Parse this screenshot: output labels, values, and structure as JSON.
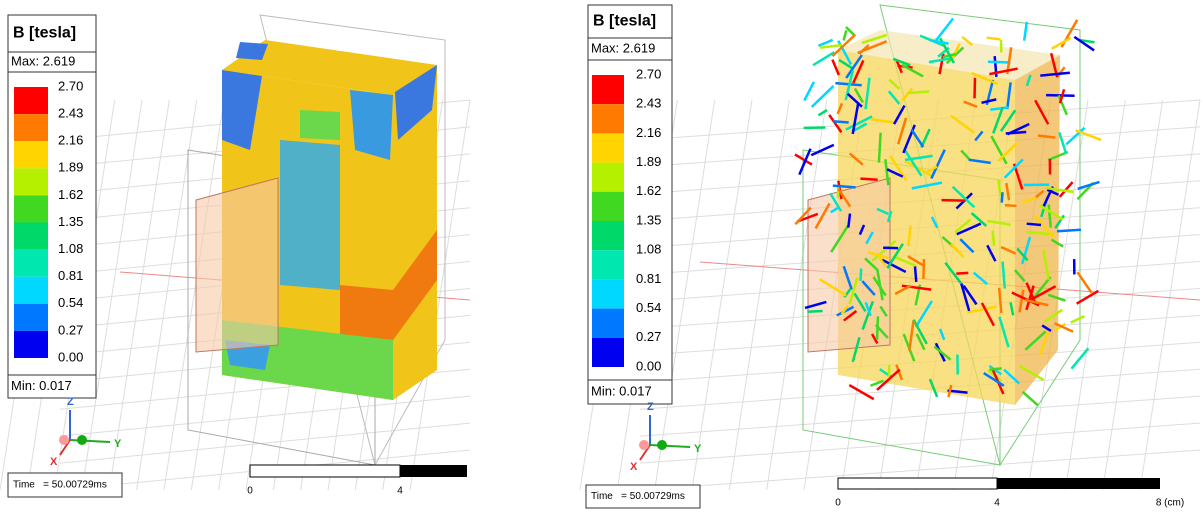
{
  "panels": [
    {
      "legend": {
        "title": "B [tesla]",
        "max": "Max: 2.619",
        "levels": [
          "2.70",
          "2.43",
          "2.16",
          "1.89",
          "1.62",
          "1.35",
          "1.08",
          "0.81",
          "0.54",
          "0.27",
          "0.00"
        ],
        "min": "Min: 0.017"
      },
      "axes": {
        "z": "Z",
        "x": "X",
        "y": "Y"
      },
      "time": "Time   = 50.00729ms",
      "scale": [
        "0",
        "4"
      ]
    },
    {
      "legend": {
        "title": "B [tesla]",
        "max": "Max: 2.619",
        "levels": [
          "2.70",
          "2.43",
          "2.16",
          "1.89",
          "1.62",
          "1.35",
          "1.08",
          "0.81",
          "0.54",
          "0.27",
          "0.00"
        ],
        "min": "Min: 0.017"
      },
      "axes": {
        "z": "Z",
        "x": "X",
        "y": "Y"
      },
      "time": "Time   = 50.00729ms",
      "scale": [
        "0",
        "4",
        "8 (cm)"
      ]
    }
  ]
}
